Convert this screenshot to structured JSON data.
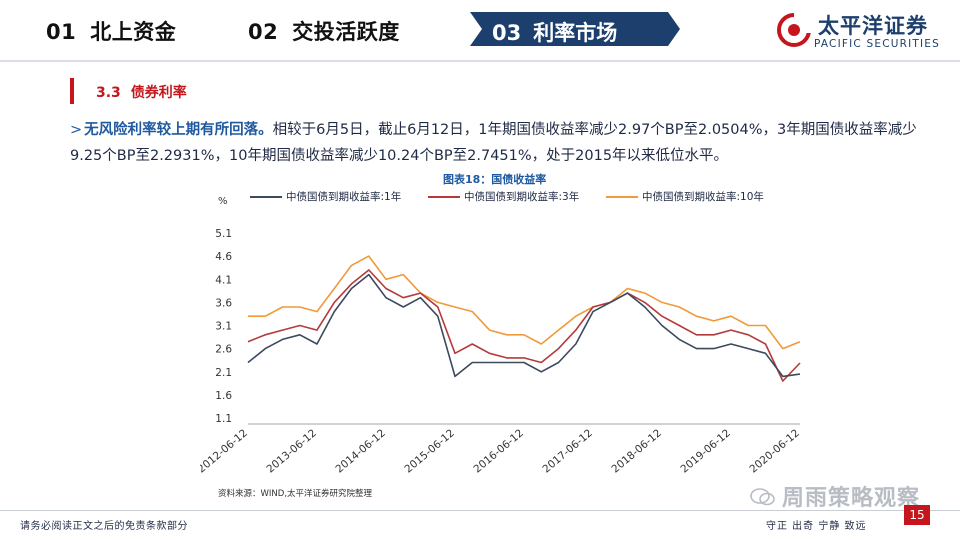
{
  "nav": {
    "items": [
      {
        "num": "01",
        "label": "北上资金"
      },
      {
        "num": "02",
        "label": "交投活跃度"
      },
      {
        "num": "03",
        "label": "利率市场"
      }
    ],
    "active_index": 2
  },
  "brand": {
    "name_cn": "太平洋证券",
    "name_en": "PACIFIC SECURITIES",
    "color": "#1d3f6e"
  },
  "section": {
    "num": "3.3",
    "title": "债券利率"
  },
  "paragraph": {
    "lead": "无风险利率较上期有所回落。",
    "text": "相较于6月5日，截止6月12日，1年期国债收益率减少2.97个BP至2.0504%，3年期国债收益率减少9.25个BP至2.2931%，10年期国债收益率减少10.24个BP至2.7451%，处于2015年以来低位水平。"
  },
  "source": "资料来源：WIND,太平洋证券研究院整理",
  "footer": {
    "disclaimer": "请务必阅读正文之后的免责条款部分",
    "slogan": "守正 出奇 宁静 致远",
    "page": "15"
  },
  "watermark": "周雨策略观察",
  "chart_data": {
    "type": "line",
    "title": "图表18：国债收益率",
    "unit": "%",
    "y_ticks": [
      1.1,
      1.6,
      2.1,
      2.6,
      3.1,
      3.6,
      4.1,
      4.6,
      5.1
    ],
    "ylim": [
      1.1,
      5.1
    ],
    "x_ticks": [
      "2012-06-12",
      "2013-06-12",
      "2014-06-12",
      "2015-06-12",
      "2016-06-12",
      "2017-06-12",
      "2018-06-12",
      "2019-06-12",
      "2020-06-12"
    ],
    "x": [
      "2012-06",
      "2012-09",
      "2012-12",
      "2013-03",
      "2013-06",
      "2013-09",
      "2013-12",
      "2014-03",
      "2014-06",
      "2014-09",
      "2014-12",
      "2015-03",
      "2015-06",
      "2015-09",
      "2015-12",
      "2016-03",
      "2016-06",
      "2016-09",
      "2016-12",
      "2017-03",
      "2017-06",
      "2017-09",
      "2017-12",
      "2018-03",
      "2018-06",
      "2018-09",
      "2018-12",
      "2019-03",
      "2019-06",
      "2019-09",
      "2019-12",
      "2020-03",
      "2020-06"
    ],
    "series": [
      {
        "name": "中债国债到期收益率:1年",
        "color": "#3c4a5e",
        "values": [
          2.3,
          2.6,
          2.8,
          2.9,
          2.7,
          3.4,
          3.9,
          4.2,
          3.7,
          3.5,
          3.7,
          3.3,
          2.0,
          2.3,
          2.3,
          2.3,
          2.3,
          2.1,
          2.3,
          2.7,
          3.4,
          3.6,
          3.8,
          3.5,
          3.1,
          2.8,
          2.6,
          2.6,
          2.7,
          2.6,
          2.5,
          2.0,
          2.05
        ]
      },
      {
        "name": "中债国债到期收益率:3年",
        "color": "#b53a3a",
        "values": [
          2.75,
          2.9,
          3.0,
          3.1,
          3.0,
          3.6,
          4.0,
          4.3,
          3.9,
          3.7,
          3.8,
          3.5,
          2.5,
          2.7,
          2.5,
          2.4,
          2.4,
          2.3,
          2.6,
          3.0,
          3.5,
          3.6,
          3.8,
          3.6,
          3.3,
          3.1,
          2.9,
          2.9,
          3.0,
          2.9,
          2.7,
          1.9,
          2.29
        ]
      },
      {
        "name": "中债国债到期收益率:10年",
        "color": "#f09a3a",
        "values": [
          3.3,
          3.3,
          3.5,
          3.5,
          3.4,
          3.9,
          4.4,
          4.6,
          4.1,
          4.2,
          3.8,
          3.6,
          3.5,
          3.4,
          3.0,
          2.9,
          2.9,
          2.7,
          3.0,
          3.3,
          3.5,
          3.6,
          3.9,
          3.8,
          3.6,
          3.5,
          3.3,
          3.2,
          3.3,
          3.1,
          3.1,
          2.6,
          2.75
        ]
      }
    ],
    "legend_position": "top"
  }
}
